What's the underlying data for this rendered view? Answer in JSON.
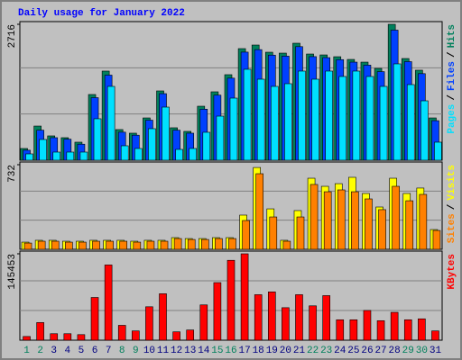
{
  "chart_data": {
    "type": "bar",
    "title": "Daily usage for January 2022",
    "categories": [
      "1",
      "2",
      "3",
      "4",
      "5",
      "6",
      "7",
      "8",
      "9",
      "10",
      "11",
      "12",
      "13",
      "14",
      "15",
      "16",
      "17",
      "18",
      "19",
      "20",
      "21",
      "22",
      "23",
      "24",
      "25",
      "26",
      "27",
      "28",
      "29",
      "30",
      "31"
    ],
    "category_colors": [
      "#00805c",
      "#00805c",
      "#000080",
      "#000080",
      "#000080",
      "#000080",
      "#000080",
      "#00805c",
      "#00805c",
      "#000080",
      "#000080",
      "#000080",
      "#000080",
      "#000080",
      "#00805c",
      "#00805c",
      "#000080",
      "#000080",
      "#000080",
      "#000080",
      "#000080",
      "#00805c",
      "#00805c",
      "#000080",
      "#000080",
      "#000080",
      "#000080",
      "#000080",
      "#00805c",
      "#00805c",
      "#000080"
    ],
    "legend_separator": "/",
    "panels": [
      {
        "ylim": [
          0,
          2716
        ],
        "yticks": [
          2716
        ],
        "series": [
          {
            "name": "Hits",
            "color": "#00805c",
            "values": [
              234,
              683,
              486,
              450,
              360,
              1313,
              1781,
              612,
              540,
              845,
              1385,
              648,
              576,
              1079,
              1367,
              1709,
              2230,
              2302,
              2158,
              2140,
              2338,
              2122,
              2104,
              2068,
              2014,
              1960,
              1835,
              2716,
              2032,
              1799,
              845
            ]
          },
          {
            "name": "Files",
            "color": "#0040ff",
            "values": [
              200,
              600,
              450,
              420,
              320,
              1250,
              1700,
              560,
              500,
              800,
              1330,
              600,
              540,
              1020,
              1300,
              1640,
              2160,
              2210,
              2100,
              2080,
              2270,
              2070,
              2050,
              2010,
              1960,
              1900,
              1770,
              2600,
              1970,
              1730,
              790
            ]
          },
          {
            "name": "Pages",
            "color": "#00e0ff",
            "values": [
              126,
              414,
              162,
              162,
              162,
              828,
              1475,
              288,
              234,
              630,
              1061,
              216,
              234,
              558,
              881,
              1241,
              1817,
              1619,
              1475,
              1529,
              1781,
              1619,
              1781,
              1673,
              1781,
              1673,
              1475,
              1925,
              1511,
              1187,
              360
            ]
          }
        ]
      },
      {
        "ylim": [
          0,
          732
        ],
        "yticks": [
          732
        ],
        "series": [
          {
            "name": "Visits",
            "color": "#ffff00",
            "values": [
              62,
              78,
              78,
              70,
              70,
              78,
              78,
              78,
              70,
              78,
              78,
              101,
              93,
              93,
              101,
              101,
              296,
              708,
              350,
              78,
              335,
              615,
              545,
              568,
              623,
              483,
              366,
              615,
              483,
              530,
              171
            ]
          },
          {
            "name": "Sites",
            "color": "#ff8000",
            "values": [
              54,
              70,
              70,
              62,
              62,
              70,
              70,
              70,
              62,
              70,
              70,
              93,
              85,
              85,
              93,
              93,
              249,
              654,
              280,
              70,
              280,
              561,
              498,
              514,
              498,
              436,
              343,
              545,
              420,
              475,
              163
            ]
          }
        ]
      },
      {
        "ylim": [
          0,
          145453
        ],
        "yticks": [
          145453
        ],
        "series": [
          {
            "name": "KBytes",
            "color": "#ff0000",
            "values": [
              6256,
              29716,
              10945,
              10945,
              9381,
              71946,
              126686,
              25024,
              15639,
              56307,
              78202,
              14075,
              17203,
              59435,
              96969,
              134505,
              145453,
              76638,
              81330,
              54743,
              76638,
              57871,
              75074,
              34408,
              34408,
              50051,
              32844,
              46923,
              34408,
              35973,
              15639
            ]
          }
        ]
      }
    ]
  }
}
